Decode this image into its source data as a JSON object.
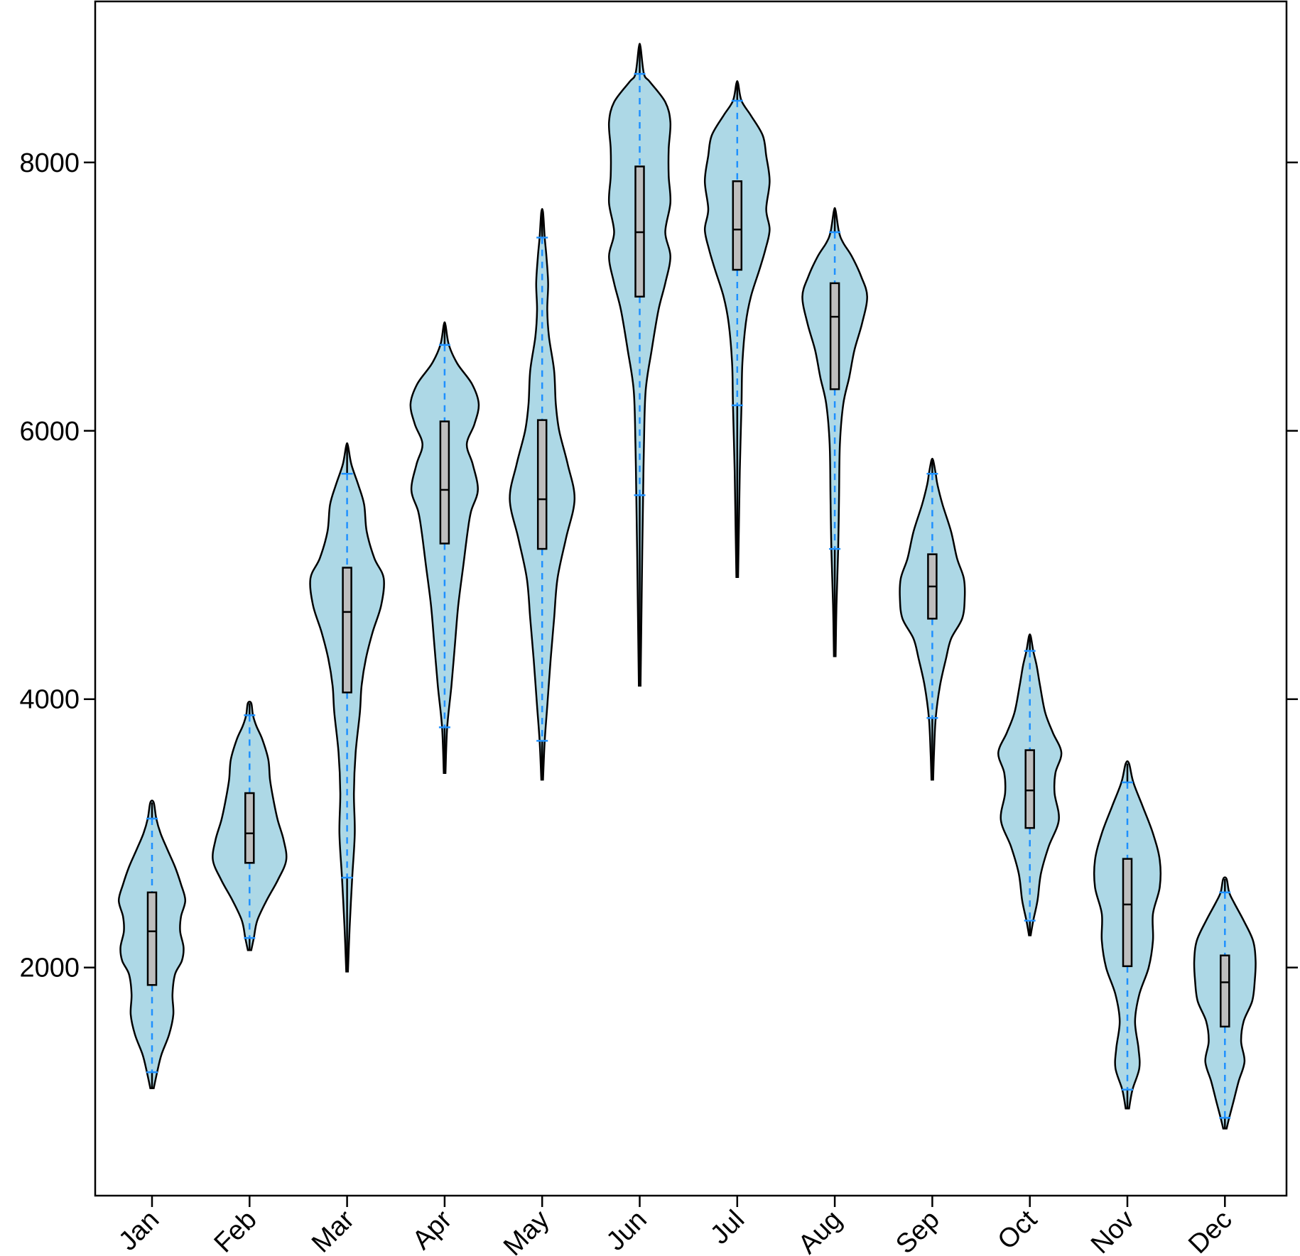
{
  "chart_data": {
    "type": "violin",
    "title": "",
    "xlabel": "",
    "ylabel": "",
    "categories": [
      "Jan",
      "Feb",
      "Mar",
      "Apr",
      "May",
      "Jun",
      "Jul",
      "Aug",
      "Sep",
      "Oct",
      "Nov",
      "Dec"
    ],
    "ylim": [
      300,
      9200
    ],
    "yticks": [
      2000,
      4000,
      6000,
      8000
    ],
    "series": [
      {
        "category": "Jan",
        "min": 1100,
        "whisker_low": 1220,
        "q1": 1870,
        "median": 2270,
        "q3": 2560,
        "whisker_high": 3110,
        "max": 3230,
        "density": [
          [
            1100,
            0.02
          ],
          [
            1220,
            0.06
          ],
          [
            1350,
            0.11
          ],
          [
            1500,
            0.2
          ],
          [
            1650,
            0.25
          ],
          [
            1800,
            0.24
          ],
          [
            1950,
            0.27
          ],
          [
            2050,
            0.35
          ],
          [
            2150,
            0.37
          ],
          [
            2270,
            0.33
          ],
          [
            2380,
            0.34
          ],
          [
            2500,
            0.39
          ],
          [
            2620,
            0.34
          ],
          [
            2750,
            0.27
          ],
          [
            2880,
            0.18
          ],
          [
            3000,
            0.1
          ],
          [
            3110,
            0.05
          ],
          [
            3230,
            0.02
          ]
        ]
      },
      {
        "category": "Feb",
        "min": 2130,
        "whisker_low": 2220,
        "q1": 2780,
        "median": 3000,
        "q3": 3300,
        "whisker_high": 3880,
        "max": 3970,
        "density": [
          [
            2130,
            0.02
          ],
          [
            2220,
            0.05
          ],
          [
            2350,
            0.09
          ],
          [
            2500,
            0.2
          ],
          [
            2650,
            0.33
          ],
          [
            2800,
            0.43
          ],
          [
            2950,
            0.4
          ],
          [
            3100,
            0.33
          ],
          [
            3250,
            0.28
          ],
          [
            3400,
            0.24
          ],
          [
            3550,
            0.22
          ],
          [
            3700,
            0.15
          ],
          [
            3800,
            0.08
          ],
          [
            3880,
            0.04
          ],
          [
            3970,
            0.02
          ]
        ]
      },
      {
        "category": "Mar",
        "min": 1970,
        "whisker_low": 2670,
        "q1": 4050,
        "median": 4650,
        "q3": 4980,
        "whisker_high": 5680,
        "max": 5890,
        "density": [
          [
            1970,
            0.01
          ],
          [
            2300,
            0.03
          ],
          [
            2670,
            0.06
          ],
          [
            3000,
            0.09
          ],
          [
            3300,
            0.08
          ],
          [
            3600,
            0.1
          ],
          [
            3900,
            0.15
          ],
          [
            4100,
            0.17
          ],
          [
            4300,
            0.22
          ],
          [
            4500,
            0.3
          ],
          [
            4700,
            0.4
          ],
          [
            4900,
            0.43
          ],
          [
            5050,
            0.32
          ],
          [
            5250,
            0.23
          ],
          [
            5450,
            0.2
          ],
          [
            5600,
            0.13
          ],
          [
            5750,
            0.05
          ],
          [
            5890,
            0.01
          ]
        ]
      },
      {
        "category": "Apr",
        "min": 3450,
        "whisker_low": 3790,
        "q1": 5160,
        "median": 5560,
        "q3": 6070,
        "whisker_high": 6640,
        "max": 6790,
        "density": [
          [
            3450,
            0.01
          ],
          [
            3790,
            0.03
          ],
          [
            4100,
            0.08
          ],
          [
            4400,
            0.12
          ],
          [
            4700,
            0.16
          ],
          [
            5000,
            0.22
          ],
          [
            5250,
            0.27
          ],
          [
            5400,
            0.31
          ],
          [
            5560,
            0.39
          ],
          [
            5750,
            0.33
          ],
          [
            5900,
            0.26
          ],
          [
            6050,
            0.35
          ],
          [
            6200,
            0.4
          ],
          [
            6350,
            0.32
          ],
          [
            6500,
            0.15
          ],
          [
            6640,
            0.05
          ],
          [
            6790,
            0.01
          ]
        ]
      },
      {
        "category": "May",
        "min": 3400,
        "whisker_low": 3690,
        "q1": 5120,
        "median": 5490,
        "q3": 6080,
        "whisker_high": 7440,
        "max": 7630,
        "density": [
          [
            3400,
            0.01
          ],
          [
            3690,
            0.03
          ],
          [
            3950,
            0.06
          ],
          [
            4300,
            0.1
          ],
          [
            4600,
            0.14
          ],
          [
            4900,
            0.18
          ],
          [
            5200,
            0.28
          ],
          [
            5490,
            0.38
          ],
          [
            5750,
            0.3
          ],
          [
            6000,
            0.2
          ],
          [
            6200,
            0.16
          ],
          [
            6450,
            0.14
          ],
          [
            6700,
            0.08
          ],
          [
            6900,
            0.06
          ],
          [
            7100,
            0.07
          ],
          [
            7300,
            0.05
          ],
          [
            7440,
            0.03
          ],
          [
            7630,
            0.01
          ]
        ]
      },
      {
        "category": "Jun",
        "min": 4100,
        "whisker_low": 5520,
        "q1": 7000,
        "median": 7480,
        "q3": 7970,
        "whisker_high": 8660,
        "max": 8860,
        "density": [
          [
            4100,
            0.01
          ],
          [
            4600,
            0.02
          ],
          [
            5100,
            0.03
          ],
          [
            5520,
            0.04
          ],
          [
            5900,
            0.05
          ],
          [
            6300,
            0.07
          ],
          [
            6600,
            0.14
          ],
          [
            6900,
            0.22
          ],
          [
            7100,
            0.3
          ],
          [
            7300,
            0.36
          ],
          [
            7480,
            0.3
          ],
          [
            7700,
            0.36
          ],
          [
            7900,
            0.34
          ],
          [
            8100,
            0.34
          ],
          [
            8300,
            0.36
          ],
          [
            8450,
            0.3
          ],
          [
            8600,
            0.12
          ],
          [
            8660,
            0.05
          ],
          [
            8860,
            0.01
          ]
        ]
      },
      {
        "category": "Jul",
        "min": 4910,
        "whisker_low": 6190,
        "q1": 7200,
        "median": 7500,
        "q3": 7860,
        "whisker_high": 8460,
        "max": 8590,
        "density": [
          [
            4910,
            0.01
          ],
          [
            5300,
            0.02
          ],
          [
            5700,
            0.03
          ],
          [
            6190,
            0.05
          ],
          [
            6500,
            0.06
          ],
          [
            6800,
            0.1
          ],
          [
            7000,
            0.16
          ],
          [
            7200,
            0.26
          ],
          [
            7350,
            0.33
          ],
          [
            7500,
            0.38
          ],
          [
            7650,
            0.34
          ],
          [
            7860,
            0.38
          ],
          [
            8050,
            0.34
          ],
          [
            8200,
            0.3
          ],
          [
            8350,
            0.16
          ],
          [
            8460,
            0.05
          ],
          [
            8590,
            0.01
          ]
        ]
      },
      {
        "category": "Aug",
        "min": 4320,
        "whisker_low": 5120,
        "q1": 6310,
        "median": 6850,
        "q3": 7100,
        "whisker_high": 7480,
        "max": 7640,
        "density": [
          [
            4320,
            0.01
          ],
          [
            4700,
            0.02
          ],
          [
            5120,
            0.04
          ],
          [
            5500,
            0.05
          ],
          [
            5900,
            0.06
          ],
          [
            6200,
            0.1
          ],
          [
            6400,
            0.17
          ],
          [
            6600,
            0.23
          ],
          [
            6800,
            0.32
          ],
          [
            7000,
            0.38
          ],
          [
            7150,
            0.31
          ],
          [
            7300,
            0.2
          ],
          [
            7400,
            0.1
          ],
          [
            7480,
            0.05
          ],
          [
            7640,
            0.01
          ]
        ]
      },
      {
        "category": "Sep",
        "min": 3400,
        "whisker_low": 3860,
        "q1": 4600,
        "median": 4840,
        "q3": 5080,
        "whisker_high": 5680,
        "max": 5780,
        "density": [
          [
            3400,
            0.01
          ],
          [
            3600,
            0.02
          ],
          [
            3860,
            0.04
          ],
          [
            4100,
            0.09
          ],
          [
            4300,
            0.16
          ],
          [
            4450,
            0.22
          ],
          [
            4600,
            0.35
          ],
          [
            4750,
            0.38
          ],
          [
            4900,
            0.37
          ],
          [
            5050,
            0.29
          ],
          [
            5250,
            0.22
          ],
          [
            5450,
            0.12
          ],
          [
            5600,
            0.06
          ],
          [
            5680,
            0.04
          ],
          [
            5780,
            0.01
          ]
        ]
      },
      {
        "category": "Oct",
        "min": 2240,
        "whisker_low": 2350,
        "q1": 3040,
        "median": 3320,
        "q3": 3620,
        "whisker_high": 4360,
        "max": 4470,
        "density": [
          [
            2240,
            0.01
          ],
          [
            2350,
            0.04
          ],
          [
            2500,
            0.09
          ],
          [
            2700,
            0.13
          ],
          [
            2900,
            0.22
          ],
          [
            3100,
            0.34
          ],
          [
            3300,
            0.29
          ],
          [
            3450,
            0.3
          ],
          [
            3600,
            0.37
          ],
          [
            3750,
            0.27
          ],
          [
            3900,
            0.18
          ],
          [
            4100,
            0.12
          ],
          [
            4250,
            0.08
          ],
          [
            4360,
            0.04
          ],
          [
            4470,
            0.01
          ]
        ]
      },
      {
        "category": "Nov",
        "min": 950,
        "whisker_low": 1090,
        "q1": 2010,
        "median": 2470,
        "q3": 2810,
        "whisker_high": 3380,
        "max": 3520,
        "density": [
          [
            950,
            0.02
          ],
          [
            1090,
            0.06
          ],
          [
            1250,
            0.14
          ],
          [
            1400,
            0.13
          ],
          [
            1600,
            0.09
          ],
          [
            1800,
            0.14
          ],
          [
            2000,
            0.25
          ],
          [
            2200,
            0.3
          ],
          [
            2400,
            0.3
          ],
          [
            2600,
            0.38
          ],
          [
            2800,
            0.38
          ],
          [
            3000,
            0.3
          ],
          [
            3200,
            0.18
          ],
          [
            3380,
            0.07
          ],
          [
            3520,
            0.02
          ]
        ]
      },
      {
        "category": "Dec",
        "min": 800,
        "whisker_low": 880,
        "q1": 1560,
        "median": 1890,
        "q3": 2090,
        "whisker_high": 2560,
        "max": 2660,
        "density": [
          [
            800,
            0.02
          ],
          [
            880,
            0.05
          ],
          [
            1000,
            0.1
          ],
          [
            1150,
            0.16
          ],
          [
            1300,
            0.23
          ],
          [
            1450,
            0.19
          ],
          [
            1600,
            0.22
          ],
          [
            1750,
            0.32
          ],
          [
            1900,
            0.35
          ],
          [
            2050,
            0.36
          ],
          [
            2200,
            0.33
          ],
          [
            2350,
            0.22
          ],
          [
            2480,
            0.11
          ],
          [
            2560,
            0.05
          ],
          [
            2660,
            0.02
          ]
        ]
      }
    ],
    "colors": {
      "violin_fill": "#add8e6",
      "violin_stroke": "#000000",
      "box_fill": "#bebebe",
      "whisker": "#1e90ff",
      "axis": "#000000"
    },
    "grid": false,
    "legend": "none"
  }
}
